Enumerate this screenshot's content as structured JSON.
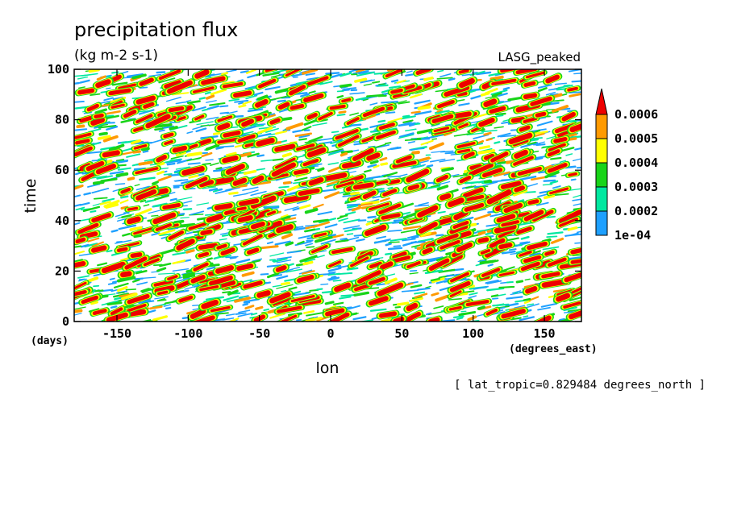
{
  "chart_data": {
    "type": "heatmap",
    "title": "precipitation flux",
    "units": "(kg m-2 s-1)",
    "model_label": "LASG_peaked",
    "xlabel": "lon",
    "x_unit": "(degrees_east)",
    "ylabel": "time",
    "y_unit": "(days)",
    "xlim": [
      -180,
      176
    ],
    "ylim": [
      0,
      100
    ],
    "x_ticks": [
      -150,
      -100,
      -50,
      0,
      50,
      100,
      150
    ],
    "x_tick_labels": [
      "-150",
      "-100",
      "-50",
      "0",
      "50",
      "100",
      "150"
    ],
    "y_ticks": [
      0,
      20,
      40,
      60,
      80,
      100
    ],
    "y_tick_labels": [
      "0",
      "20",
      "40",
      "60",
      "80",
      "100"
    ],
    "colorbar": {
      "levels": [
        0.0001,
        0.0002,
        0.0003,
        0.0004,
        0.0005,
        0.0006
      ],
      "labels": [
        "1e-04",
        "0.0002",
        "0.0003",
        "0.0004",
        "0.0005",
        "0.0006"
      ],
      "colors": [
        "#1ea0ff",
        "#00e8a0",
        "#18d418",
        "#ffff00",
        "#ff9a00",
        "#ee0000"
      ],
      "extend": "max"
    },
    "footnote": "[ lat_tropic=0.829484 degrees_north ]"
  }
}
